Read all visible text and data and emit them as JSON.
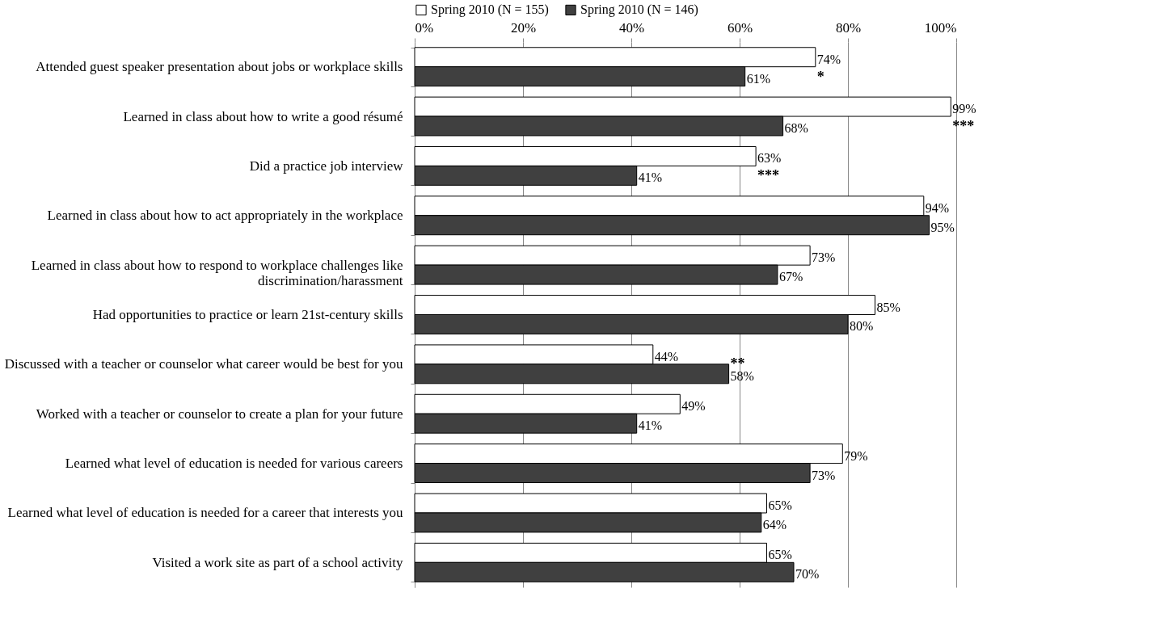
{
  "chart_data": {
    "type": "bar",
    "orientation": "horizontal",
    "categories": [
      "Attended guest speaker presentation about jobs or workplace skills",
      "Learned in class about how to write a good résumé",
      "Did a practice job interview",
      "Learned in class about how to act appropriately in the workplace",
      "Learned in class about how to respond to workplace challenges like discrimination/harassment",
      "Had opportunities to practice or learn 21st-century skills",
      "Discussed with a teacher or counselor what career would be best for you",
      "Worked with a teacher or counselor to create a plan for your future",
      "Learned what level of education is needed for various careers",
      "Learned what level of education is needed for a career that interests you",
      "Visited a work site as part of a school activity"
    ],
    "series": [
      {
        "name": "Spring 2010 (N = 155)",
        "color": "#ffffff",
        "values": [
          74,
          99,
          63,
          94,
          73,
          85,
          44,
          49,
          79,
          65,
          65
        ],
        "value_labels": [
          "74%",
          "99%",
          "63%",
          "94%",
          "73%",
          "85%",
          "44%",
          "49%",
          "79%",
          "65%",
          "65%"
        ]
      },
      {
        "name": "Spring 2010 (N = 146)",
        "color": "#404040",
        "values": [
          61,
          68,
          41,
          95,
          67,
          80,
          58,
          41,
          73,
          64,
          70
        ],
        "value_labels": [
          "61%",
          "68%",
          "41%",
          "95%",
          "67%",
          "80%",
          "58%",
          "41%",
          "73%",
          "64%",
          "70%"
        ]
      }
    ],
    "xlim": [
      0,
      100
    ],
    "xticks": [
      {
        "value": 0,
        "label": "0%"
      },
      {
        "value": 20,
        "label": "20%"
      },
      {
        "value": 40,
        "label": "40%"
      },
      {
        "value": 60,
        "label": "60%"
      },
      {
        "value": 80,
        "label": "80%"
      },
      {
        "value": 100,
        "label": "100%"
      }
    ],
    "grid": "x",
    "legend": "top",
    "annotations": [
      {
        "text": "*",
        "x": 74,
        "y": "Attended guest speaker presentation about jobs or workplace skills"
      },
      {
        "text": "***",
        "x": 99,
        "y": "Learned in class about how to write a good résumé"
      },
      {
        "text": "***",
        "x": 63,
        "y": "Did a practice job interview"
      },
      {
        "text": "**",
        "x": 58,
        "y": "Discussed with a teacher or counselor what career would be best for you"
      }
    ]
  }
}
